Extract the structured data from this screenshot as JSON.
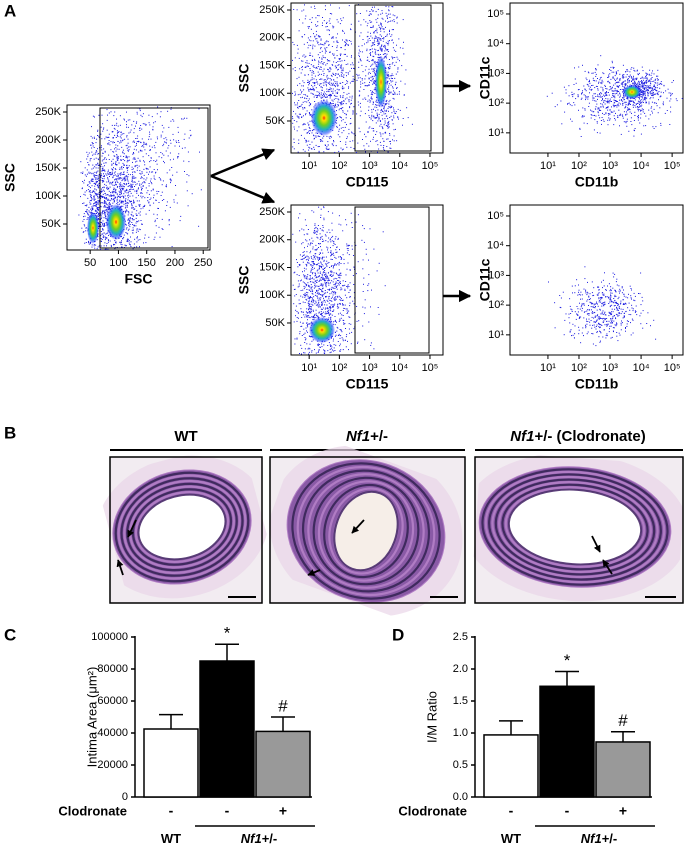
{
  "panel_labels": {
    "a": "A",
    "b": "B",
    "c": "C",
    "d": "D"
  },
  "histology": {
    "titles": [
      {
        "text": "WT"
      },
      {
        "gene": "Nf1",
        "text": "+/-"
      },
      {
        "gene": "Nf1",
        "text": "+/- (Clodronate)"
      }
    ]
  },
  "chart_data": [
    {
      "type": "scatter",
      "xlabel": "FSC",
      "ylabel": "SSC",
      "xlim": [
        9,
        262
      ],
      "ylim": [
        3600,
        262500
      ],
      "xticks": [
        50,
        100,
        150,
        200,
        250
      ],
      "yticks": [
        {
          "value": 50000,
          "label": "50K"
        },
        {
          "value": 100000,
          "label": "100K"
        },
        {
          "value": 150000,
          "label": "150K"
        },
        {
          "value": 200000,
          "label": "200K"
        },
        {
          "value": 250000,
          "label": "250K"
        }
      ]
    },
    {
      "type": "scatter",
      "xlabel": "CD115",
      "ylabel": "SSC",
      "xscale": "log",
      "xlim": [
        2.5,
        270000
      ],
      "ylim": [
        -7700,
        262600
      ],
      "xticks": [
        {
          "value": 10,
          "label": "10¹"
        },
        {
          "value": 100,
          "label": "10²"
        },
        {
          "value": 1000,
          "label": "10³"
        },
        {
          "value": 10000,
          "label": "10⁴"
        },
        {
          "value": 100000,
          "label": "10⁵"
        }
      ],
      "yticks": [
        {
          "value": 50000,
          "label": "50K"
        },
        {
          "value": 100000,
          "label": "100K"
        },
        {
          "value": 150000,
          "label": "150K"
        },
        {
          "value": 200000,
          "label": "200K"
        },
        {
          "value": 250000,
          "label": "250K"
        }
      ]
    },
    {
      "type": "scatter",
      "xlabel": "CD115",
      "ylabel": "SSC",
      "xscale": "log",
      "xlim": [
        2.5,
        270000
      ],
      "ylim": [
        -7700,
        262600
      ],
      "xticks": [
        {
          "value": 10,
          "label": "10¹"
        },
        {
          "value": 100,
          "label": "10²"
        },
        {
          "value": 1000,
          "label": "10³"
        },
        {
          "value": 10000,
          "label": "10⁴"
        },
        {
          "value": 100000,
          "label": "10⁵"
        }
      ],
      "yticks": [
        {
          "value": 50000,
          "label": "50K"
        },
        {
          "value": 100000,
          "label": "100K"
        },
        {
          "value": 150000,
          "label": "150K"
        },
        {
          "value": 200000,
          "label": "200K"
        },
        {
          "value": 250000,
          "label": "250K"
        }
      ]
    },
    {
      "type": "scatter",
      "xlabel": "CD11b",
      "ylabel": "CD11c",
      "xscale": "log",
      "yscale": "log",
      "xlim": [
        0.6,
        224000
      ],
      "ylim": [
        2.1,
        234000
      ],
      "xticks": [
        {
          "value": 10,
          "label": "10¹"
        },
        {
          "value": 100,
          "label": "10²"
        },
        {
          "value": 1000,
          "label": "10³"
        },
        {
          "value": 10000,
          "label": "10⁴"
        },
        {
          "value": 100000,
          "label": "10⁵"
        }
      ],
      "yticks": [
        {
          "value": 10,
          "label": "10¹"
        },
        {
          "value": 100,
          "label": "10²"
        },
        {
          "value": 1000,
          "label": "10³"
        },
        {
          "value": 10000,
          "label": "10⁴"
        },
        {
          "value": 100000,
          "label": "10⁵"
        }
      ]
    },
    {
      "type": "scatter",
      "xlabel": "CD11b",
      "ylabel": "CD11c",
      "xscale": "log",
      "yscale": "log",
      "xlim": [
        0.6,
        224000
      ],
      "ylim": [
        2.1,
        234000
      ],
      "xticks": [
        {
          "value": 10,
          "label": "10¹"
        },
        {
          "value": 100,
          "label": "10²"
        },
        {
          "value": 1000,
          "label": "10³"
        },
        {
          "value": 10000,
          "label": "10⁴"
        },
        {
          "value": 100000,
          "label": "10⁵"
        }
      ],
      "yticks": [
        {
          "value": 10,
          "label": "10¹"
        },
        {
          "value": 100,
          "label": "10²"
        },
        {
          "value": 1000,
          "label": "10³"
        },
        {
          "value": 10000,
          "label": "10⁴"
        },
        {
          "value": 100000,
          "label": "10⁵"
        }
      ]
    },
    {
      "type": "bar",
      "ylabel": "Intima Area (μm²)",
      "category_title": "Clodronate",
      "categories": [
        "-",
        "-",
        "+"
      ],
      "values": [
        42500,
        85000,
        41000
      ],
      "errors": [
        9000,
        10500,
        9000
      ],
      "annotations": [
        null,
        "*",
        "#"
      ],
      "colors": [
        "#ffffff",
        "#000000",
        "#999999"
      ],
      "groups": [
        {
          "text": "WT"
        },
        {
          "gene": "Nf1",
          "text": "+/-"
        }
      ],
      "ylim": [
        0,
        100000
      ],
      "yticks": [
        0,
        20000,
        40000,
        60000,
        80000,
        100000
      ]
    },
    {
      "type": "bar",
      "ylabel": "I/M Ratio",
      "category_title": "Clodronate",
      "categories": [
        "-",
        "-",
        "+"
      ],
      "values": [
        0.97,
        1.73,
        0.86
      ],
      "errors": [
        0.22,
        0.23,
        0.16
      ],
      "annotations": [
        null,
        "*",
        "#"
      ],
      "colors": [
        "#ffffff",
        "#000000",
        "#999999"
      ],
      "groups": [
        {
          "text": "WT"
        },
        {
          "gene": "Nf1",
          "text": "+/-"
        }
      ],
      "ylim": [
        0,
        2.5
      ],
      "yticks": [
        {
          "value": 0,
          "label": "0.0"
        },
        {
          "value": 0.5,
          "label": "0.5"
        },
        {
          "value": 1,
          "label": "1.0"
        },
        {
          "value": 1.5,
          "label": "1.5"
        },
        {
          "value": 2,
          "label": "2.0"
        },
        {
          "value": 2.5,
          "label": "2.5"
        }
      ]
    }
  ]
}
